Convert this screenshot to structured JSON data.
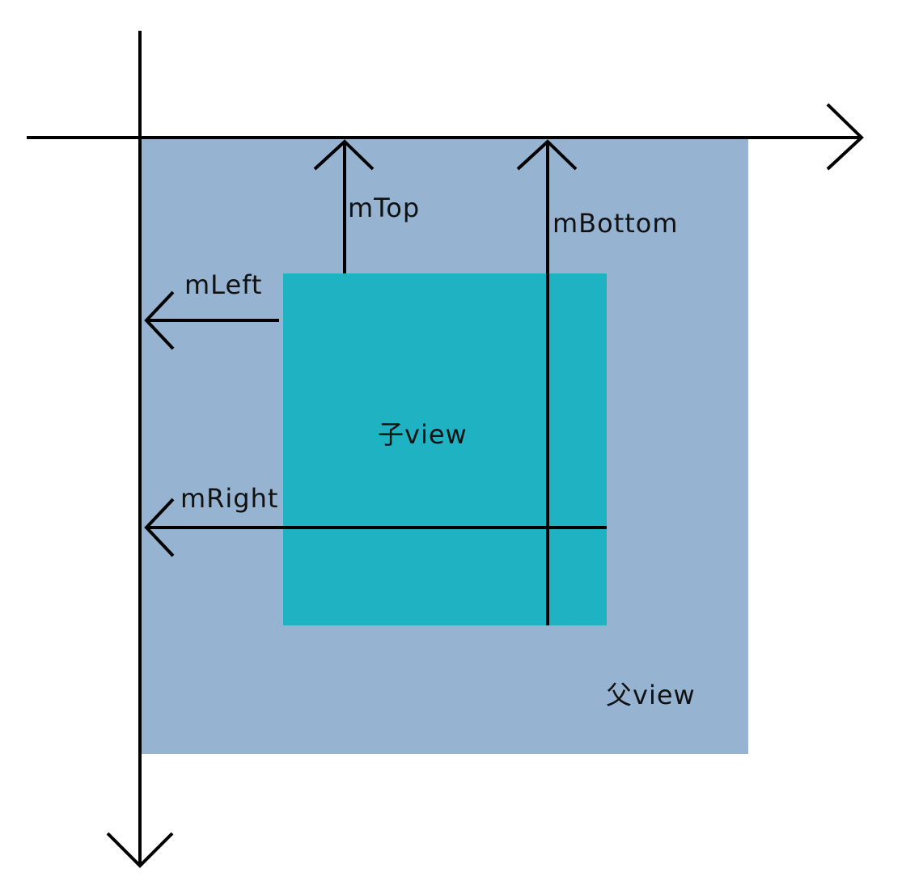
{
  "labels": {
    "child_view": "子view",
    "parent_view": "父view",
    "m_top": "mTop",
    "m_bottom": "mBottom",
    "m_left": "mLeft",
    "m_right": "mRight"
  },
  "colors": {
    "parent_fill": "#96B4D2",
    "child_fill": "#1EB2C2",
    "line": "#000000",
    "text": "#111111",
    "background": "#FFFFFF"
  }
}
